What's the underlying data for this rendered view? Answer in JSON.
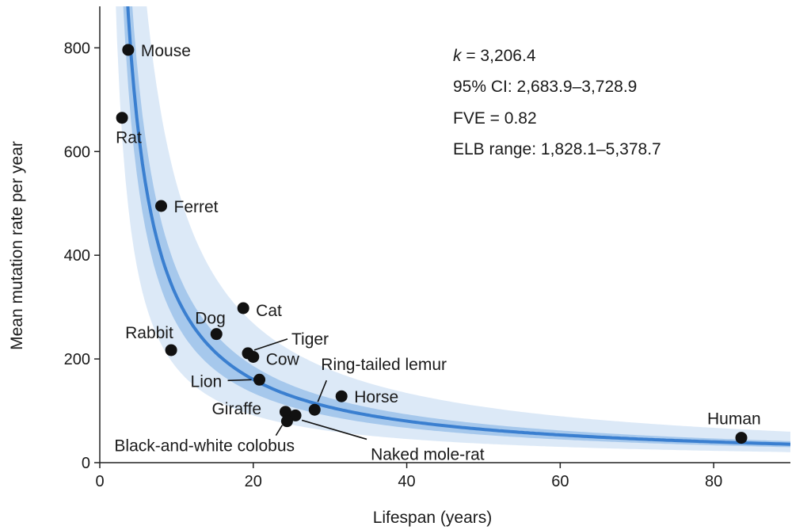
{
  "chart_data": {
    "type": "scatter",
    "title": "",
    "xlabel": "Lifespan (years)",
    "ylabel": "Mean mutation rate per year",
    "xlim": [
      0,
      90
    ],
    "ylim": [
      0,
      880
    ],
    "xticks": [
      0,
      20,
      40,
      60,
      80
    ],
    "xtick_labels": [
      "0",
      "20",
      "40",
      "60",
      "80"
    ],
    "yticks": [
      0,
      200,
      400,
      600,
      800
    ],
    "ytick_labels": [
      "0",
      "200",
      "400",
      "600",
      "800"
    ],
    "grid": false,
    "legend": "none",
    "points": [
      {
        "label": "Mouse",
        "x": 3.7,
        "y": 796
      },
      {
        "label": "Rat",
        "x": 2.9,
        "y": 665
      },
      {
        "label": "Ferret",
        "x": 8.0,
        "y": 495
      },
      {
        "label": "Rabbit",
        "x": 9.3,
        "y": 217
      },
      {
        "label": "Dog",
        "x": 15.2,
        "y": 248
      },
      {
        "label": "Cat",
        "x": 18.7,
        "y": 298
      },
      {
        "label": "Tiger",
        "x": 19.3,
        "y": 211
      },
      {
        "label": "Cow",
        "x": 20.0,
        "y": 204
      },
      {
        "label": "Lion",
        "x": 20.8,
        "y": 160
      },
      {
        "label": "Ring-tailed lemur",
        "x": 28.0,
        "y": 102
      },
      {
        "label": "Horse",
        "x": 31.5,
        "y": 128
      },
      {
        "label": "Giraffe",
        "x": 24.2,
        "y": 98
      },
      {
        "label": "Naked mole-rat",
        "x": 25.5,
        "y": 91
      },
      {
        "label": "Black-and-white colobus",
        "x": 24.4,
        "y": 80
      },
      {
        "label": "Human",
        "x": 83.6,
        "y": 48
      }
    ],
    "fit": {
      "form": "y = k / x",
      "k": 3206.4,
      "ci_low": 2683.9,
      "ci_high": 3728.9,
      "elb_low": 1828.1,
      "elb_high": 5378.7
    },
    "annotations": {
      "k_symbol": "k",
      "k_text": " = 3,206.4",
      "ci": "95% CI: 2,683.9–3,728.9",
      "fve": "FVE = 0.82",
      "elb": "ELB range: 1,828.1–5,378.7"
    },
    "colors": {
      "fit_line": "#3a7fd0",
      "ci_band": "#a6c8ec",
      "elb_band": "#dce9f7",
      "points": "#111111"
    }
  }
}
